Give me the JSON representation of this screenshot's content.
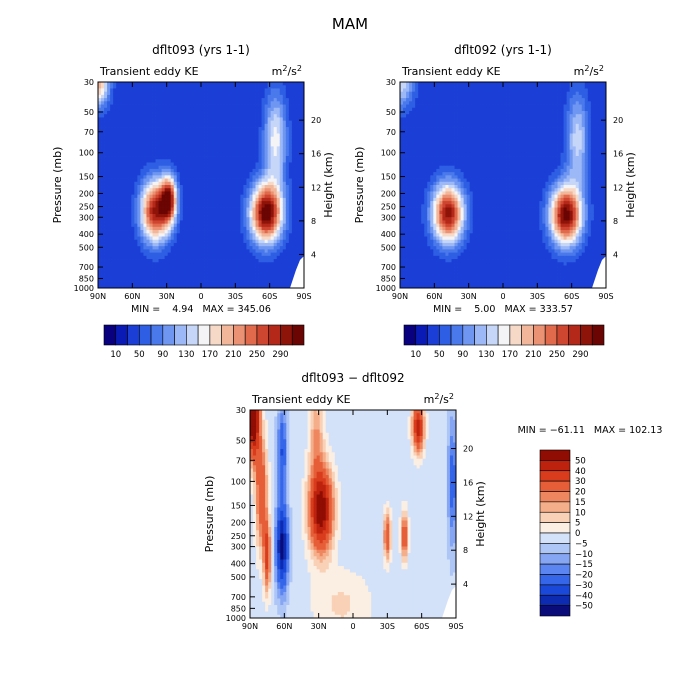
{
  "figure": {
    "title": "MAM"
  },
  "palette": {
    "full": [
      "#08007f",
      "#0a1bb5",
      "#1b3fd6",
      "#2e5ee3",
      "#4a79ec",
      "#6f97f2",
      "#9cb8f6",
      "#c6d6f8",
      "#f4f4f6",
      "#f7d9c8",
      "#f2b79a",
      "#ec9274",
      "#e16a4c",
      "#ce4530",
      "#b32818",
      "#8e1309",
      "#6a0503"
    ],
    "diff": [
      "#0a0c7a",
      "#0d2bb0",
      "#1a48d8",
      "#3565e8",
      "#5b85f0",
      "#86a6f3",
      "#aec6f6",
      "#d3e2f8",
      "#fbeee3",
      "#f9d1b6",
      "#f5ae8a",
      "#ee8660",
      "#e55e38",
      "#d83c1c",
      "#bc220d",
      "#8f0d03"
    ]
  },
  "chart_data": [
    {
      "type": "heatmap",
      "title": "dflt093 (yrs 1-1)",
      "subtitle_left": "Transient eddy KE",
      "units": {
        "base": "m",
        "exp": "2",
        "tail": "/s",
        "exp2": "2"
      },
      "xlabel": "",
      "ylabel": "Pressure (mb)",
      "ylabel_right": "Height (km)",
      "x_ticks": [
        "90N",
        "60N",
        "30N",
        "0",
        "30S",
        "60S",
        "90S"
      ],
      "x_tick_values": [
        90,
        60,
        30,
        0,
        -30,
        -60,
        -90
      ],
      "y_ticks": [
        "30",
        "50",
        "70",
        "100",
        "150",
        "200",
        "250",
        "300",
        "400",
        "500",
        "700",
        "850",
        "1000"
      ],
      "y_tick_values": [
        30,
        50,
        70,
        100,
        150,
        200,
        250,
        300,
        400,
        500,
        700,
        850,
        1000
      ],
      "right_ticks": [
        "20",
        "16",
        "12",
        "8",
        "4"
      ],
      "right_tick_values": [
        20,
        16,
        12,
        8,
        4
      ],
      "stats": "MIN =    4.94   MAX = 345.06",
      "min": 4.94,
      "max": 345.06,
      "features": [
        {
          "lat": 90,
          "p": 30,
          "value": 210,
          "wlat": 10,
          "wlogp": 0.18
        },
        {
          "lat": 40,
          "p": 270,
          "value": 290,
          "wlat": 13,
          "wlogp": 0.23
        },
        {
          "lat": 28,
          "p": 220,
          "value": 260,
          "wlat": 7,
          "wlogp": 0.17
        },
        {
          "lat": -57,
          "p": 280,
          "value": 330,
          "wlat": 14,
          "wlogp": 0.22
        },
        {
          "lat": -65,
          "p": 80,
          "value": 160,
          "wlat": 10,
          "wlogp": 0.35
        }
      ],
      "background": 30
    },
    {
      "type": "heatmap",
      "title": "dflt092 (yrs 1-1)",
      "subtitle_left": "Transient eddy KE",
      "units": {
        "base": "m",
        "exp": "2",
        "tail": "/s",
        "exp2": "2"
      },
      "xlabel": "",
      "ylabel": "Pressure (mb)",
      "ylabel_right": "Height (km)",
      "x_ticks": [
        "90N",
        "60N",
        "30N",
        "0",
        "30S",
        "60S",
        "90S"
      ],
      "x_tick_values": [
        90,
        60,
        30,
        0,
        -30,
        -60,
        -90
      ],
      "y_ticks": [
        "30",
        "50",
        "70",
        "100",
        "150",
        "200",
        "250",
        "300",
        "400",
        "500",
        "700",
        "850",
        "1000"
      ],
      "y_tick_values": [
        30,
        50,
        70,
        100,
        150,
        200,
        250,
        300,
        400,
        500,
        700,
        850,
        1000
      ],
      "right_ticks": [
        "20",
        "16",
        "12",
        "8",
        "4"
      ],
      "right_tick_values": [
        20,
        16,
        12,
        8,
        4
      ],
      "stats": "MIN =    5.00   MAX = 333.57",
      "min": 5.0,
      "max": 333.57,
      "features": [
        {
          "lat": 90,
          "p": 30,
          "value": 150,
          "wlat": 12,
          "wlogp": 0.2
        },
        {
          "lat": 48,
          "p": 280,
          "value": 300,
          "wlat": 14,
          "wlogp": 0.22
        },
        {
          "lat": -55,
          "p": 290,
          "value": 320,
          "wlat": 14,
          "wlogp": 0.22
        },
        {
          "lat": -65,
          "p": 80,
          "value": 140,
          "wlat": 10,
          "wlogp": 0.35
        }
      ],
      "background": 30
    },
    {
      "type": "heatmap",
      "title": "dflt093 − dflt092",
      "subtitle_left": "Transient eddy KE",
      "units": {
        "base": "m",
        "exp": "2",
        "tail": "/s",
        "exp2": "2"
      },
      "xlabel": "",
      "ylabel": "Pressure (mb)",
      "ylabel_right": "Height (km)",
      "x_ticks": [
        "90N",
        "60N",
        "30N",
        "0",
        "30S",
        "60S",
        "90S"
      ],
      "x_tick_values": [
        90,
        60,
        30,
        0,
        -30,
        -60,
        -90
      ],
      "y_ticks": [
        "30",
        "50",
        "70",
        "100",
        "150",
        "200",
        "250",
        "300",
        "400",
        "500",
        "700",
        "850",
        "1000"
      ],
      "y_tick_values": [
        30,
        50,
        70,
        100,
        150,
        200,
        250,
        300,
        400,
        500,
        700,
        850,
        1000
      ],
      "right_ticks": [
        "20",
        "16",
        "12",
        "8",
        "4"
      ],
      "right_tick_values": [
        20,
        16,
        12,
        8,
        4
      ],
      "stats": "MIN = −61.11   MAX = 102.13",
      "min": -61.11,
      "max": 102.13,
      "features": [
        {
          "lat": 87,
          "p": 33,
          "value": 70,
          "wlat": 5,
          "wlogp": 0.3
        },
        {
          "lat": 80,
          "p": 120,
          "value": 30,
          "wlat": 5,
          "wlogp": 0.4
        },
        {
          "lat": 75,
          "p": 350,
          "value": 35,
          "wlat": 3,
          "wlogp": 0.25
        },
        {
          "lat": 62,
          "p": 300,
          "value": -55,
          "wlat": 5,
          "wlogp": 0.3
        },
        {
          "lat": 62,
          "p": 60,
          "value": -30,
          "wlat": 4,
          "wlogp": 0.3
        },
        {
          "lat": 28,
          "p": 160,
          "value": 60,
          "wlat": 10,
          "wlogp": 0.3
        },
        {
          "lat": 32,
          "p": 45,
          "value": 15,
          "wlat": 6,
          "wlogp": 0.3
        },
        {
          "lat": -30,
          "p": 250,
          "value": 30,
          "wlat": 3,
          "wlogp": 0.17
        },
        {
          "lat": -45,
          "p": 250,
          "value": 30,
          "wlat": 3,
          "wlogp": 0.17
        },
        {
          "lat": -57,
          "p": 40,
          "value": 45,
          "wlat": 5,
          "wlogp": 0.18
        },
        {
          "lat": -87,
          "p": 100,
          "value": -25,
          "wlat": 4,
          "wlogp": 0.45
        },
        {
          "lat": 10,
          "p": 800,
          "value": 6,
          "wlat": 25,
          "wlogp": 0.25
        }
      ],
      "background": -3
    }
  ],
  "colorbars": {
    "full": {
      "levels": [
        10,
        30,
        50,
        70,
        90,
        110,
        130,
        150,
        170,
        190,
        210,
        230,
        250,
        270,
        290,
        310
      ],
      "labels": [
        "10",
        "50",
        "90",
        "130",
        "170",
        "210",
        "250",
        "290"
      ]
    },
    "diff": {
      "levels": [
        -50,
        -40,
        -30,
        -20,
        -15,
        -10,
        -5,
        0,
        5,
        10,
        15,
        20,
        30,
        40,
        50
      ],
      "labels": [
        "50",
        "40",
        "30",
        "20",
        "15",
        "10",
        "5",
        "0",
        "−5",
        "−10",
        "−15",
        "−20",
        "−30",
        "−40",
        "−50"
      ]
    }
  }
}
